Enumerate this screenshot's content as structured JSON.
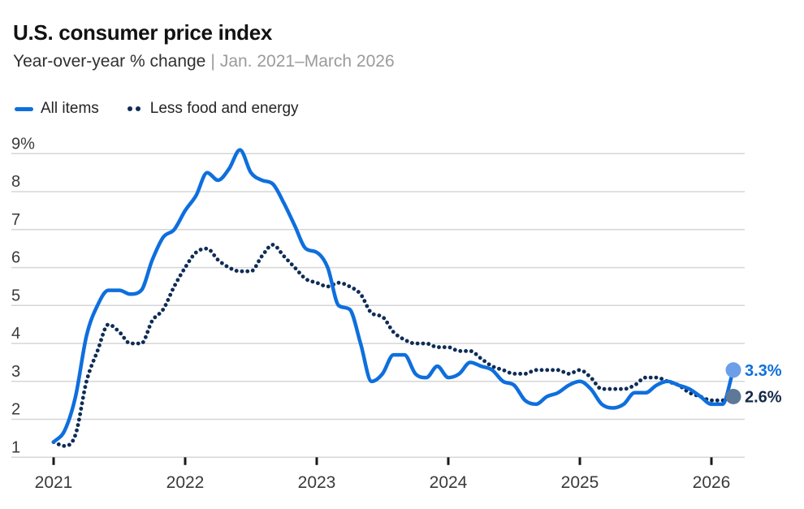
{
  "header": {
    "title": "U.S. consumer price index",
    "subtitle": "Year-over-year % change",
    "separator": "|",
    "date_range": "Jan. 2021–March 2026"
  },
  "colors": {
    "all_items_blue": "#0E6FDD",
    "core_navy": "#0E2C57",
    "all_items_end_marker": "#6C9FE8",
    "core_end_marker": "#5E7897",
    "all_items_label_text": "#0E6FDD",
    "core_label_text": "#14294A",
    "grid_line": "#D6D6D6",
    "axis_text": "#3A3A3A",
    "tick_mark": "#191919",
    "title_text": "#121212",
    "subtitle_text": "#303030",
    "muted_text": "#9B9B9B",
    "background": "#FFFFFF"
  },
  "chart_data": {
    "type": "line",
    "title": "U.S. consumer price index",
    "subtitle": "Year-over-year % change",
    "x_range_label": "Jan. 2021–March 2026",
    "x_unit": "month",
    "x_start": "Jan 2021",
    "x_end": "March 2026",
    "x_tick_labels": [
      "2021",
      "2022",
      "2023",
      "2024",
      "2025",
      "2026"
    ],
    "ylim": [
      1,
      9
    ],
    "y_ticks": [
      9,
      8,
      7,
      6,
      5,
      4,
      3,
      2,
      1
    ],
    "y_tick_labels": [
      "9%",
      "8",
      "7",
      "6",
      "5",
      "4",
      "3",
      "2",
      "1"
    ],
    "grid": "horizontal-only",
    "legend_position": "top-left",
    "series": [
      {
        "name": "All items",
        "line_style": "solid",
        "end_label": "3.3%",
        "values": [
          1.4,
          1.7,
          2.6,
          4.2,
          5.0,
          5.4,
          5.4,
          5.3,
          5.4,
          6.2,
          6.8,
          7.0,
          7.5,
          7.9,
          8.5,
          8.3,
          8.6,
          9.1,
          8.5,
          8.3,
          8.2,
          7.7,
          7.1,
          6.5,
          6.4,
          6.0,
          5.0,
          4.9,
          4.0,
          3.0,
          3.2,
          3.7,
          3.7,
          3.2,
          3.1,
          3.4,
          3.1,
          3.2,
          3.5,
          3.4,
          3.3,
          3.0,
          2.9,
          2.5,
          2.4,
          2.6,
          2.7,
          2.9,
          3.0,
          2.8,
          2.4,
          2.3,
          2.4,
          2.7,
          2.7,
          2.9,
          3.0,
          2.9,
          2.8,
          2.6,
          2.4,
          2.4,
          3.3
        ]
      },
      {
        "name": "Less food and energy",
        "line_style": "dotted",
        "end_label": "2.6%",
        "values": [
          1.4,
          1.3,
          1.6,
          3.0,
          3.8,
          4.5,
          4.3,
          4.0,
          4.0,
          4.6,
          4.9,
          5.5,
          6.0,
          6.4,
          6.5,
          6.2,
          6.0,
          5.9,
          5.9,
          6.3,
          6.6,
          6.3,
          6.0,
          5.7,
          5.6,
          5.5,
          5.6,
          5.5,
          5.3,
          4.8,
          4.7,
          4.3,
          4.1,
          4.0,
          4.0,
          3.9,
          3.9,
          3.8,
          3.8,
          3.6,
          3.4,
          3.3,
          3.2,
          3.2,
          3.3,
          3.3,
          3.3,
          3.2,
          3.3,
          3.1,
          2.8,
          2.8,
          2.8,
          2.9,
          3.1,
          3.1,
          3.0,
          2.9,
          2.7,
          2.6,
          2.5,
          2.5,
          2.6
        ]
      }
    ]
  }
}
